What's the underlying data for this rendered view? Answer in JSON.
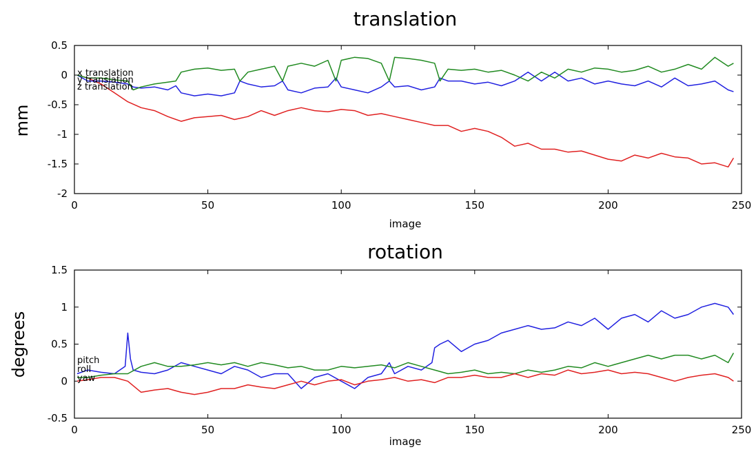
{
  "chart_data": [
    {
      "type": "line",
      "title": "translation",
      "xlabel": "image",
      "ylabel": "mm",
      "xlim": [
        0,
        250
      ],
      "ylim": [
        -2,
        0.5
      ],
      "xticks": [
        "0",
        "50",
        "100",
        "150",
        "200",
        "250"
      ],
      "yticks": [
        "-2",
        "-1.5",
        "-1",
        "-0.5",
        "0",
        "0.5"
      ],
      "grid": false,
      "legend_entries": [
        "x translation",
        "y translation",
        "z translation"
      ],
      "series": [
        {
          "name": "x translation",
          "color": "#e02020",
          "x": [
            1,
            5,
            10,
            15,
            20,
            25,
            30,
            35,
            40,
            45,
            50,
            55,
            60,
            65,
            70,
            75,
            80,
            85,
            90,
            95,
            100,
            105,
            110,
            115,
            120,
            125,
            130,
            135,
            140,
            145,
            150,
            155,
            160,
            165,
            170,
            175,
            180,
            185,
            190,
            195,
            200,
            205,
            210,
            215,
            220,
            225,
            230,
            235,
            240,
            245,
            247
          ],
          "values": [
            0,
            -0.05,
            -0.15,
            -0.3,
            -0.45,
            -0.55,
            -0.6,
            -0.7,
            -0.78,
            -0.72,
            -0.7,
            -0.68,
            -0.75,
            -0.7,
            -0.6,
            -0.68,
            -0.6,
            -0.55,
            -0.6,
            -0.62,
            -0.58,
            -0.6,
            -0.68,
            -0.65,
            -0.7,
            -0.75,
            -0.8,
            -0.85,
            -0.85,
            -0.95,
            -0.9,
            -0.95,
            -1.05,
            -1.2,
            -1.15,
            -1.25,
            -1.25,
            -1.3,
            -1.28,
            -1.35,
            -1.42,
            -1.45,
            -1.35,
            -1.4,
            -1.32,
            -1.38,
            -1.4,
            -1.5,
            -1.48,
            -1.55,
            -1.4
          ]
        },
        {
          "name": "y translation",
          "color": "#2020e0",
          "x": [
            1,
            5,
            10,
            15,
            20,
            22,
            25,
            30,
            35,
            38,
            40,
            45,
            50,
            55,
            60,
            62,
            65,
            70,
            75,
            78,
            80,
            85,
            90,
            95,
            98,
            100,
            105,
            110,
            115,
            118,
            120,
            125,
            130,
            135,
            137,
            140,
            145,
            150,
            155,
            160,
            165,
            170,
            175,
            180,
            185,
            190,
            195,
            200,
            205,
            210,
            215,
            220,
            225,
            230,
            235,
            240,
            245,
            247
          ],
          "values": [
            0,
            -0.1,
            -0.1,
            -0.12,
            -0.15,
            -0.2,
            -0.22,
            -0.2,
            -0.25,
            -0.18,
            -0.3,
            -0.35,
            -0.32,
            -0.35,
            -0.3,
            -0.1,
            -0.15,
            -0.2,
            -0.18,
            -0.1,
            -0.25,
            -0.3,
            -0.22,
            -0.2,
            -0.05,
            -0.2,
            -0.25,
            -0.3,
            -0.2,
            -0.1,
            -0.2,
            -0.18,
            -0.25,
            -0.2,
            -0.05,
            -0.1,
            -0.1,
            -0.15,
            -0.12,
            -0.18,
            -0.1,
            0.05,
            -0.1,
            0.05,
            -0.1,
            -0.05,
            -0.15,
            -0.1,
            -0.15,
            -0.18,
            -0.1,
            -0.2,
            -0.05,
            -0.18,
            -0.15,
            -0.1,
            -0.25,
            -0.28
          ]
        },
        {
          "name": "z translation",
          "color": "#208a20",
          "x": [
            1,
            5,
            10,
            15,
            20,
            22,
            25,
            30,
            35,
            38,
            40,
            45,
            50,
            55,
            60,
            62,
            65,
            70,
            75,
            78,
            80,
            85,
            90,
            95,
            98,
            100,
            105,
            110,
            115,
            118,
            120,
            125,
            130,
            135,
            137,
            140,
            145,
            150,
            155,
            160,
            165,
            170,
            175,
            180,
            185,
            190,
            195,
            200,
            205,
            210,
            215,
            220,
            225,
            230,
            235,
            240,
            245,
            247
          ],
          "values": [
            0,
            -0.05,
            -0.05,
            -0.08,
            -0.1,
            -0.25,
            -0.2,
            -0.15,
            -0.12,
            -0.1,
            0.05,
            0.1,
            0.12,
            0.08,
            0.1,
            -0.1,
            0.05,
            0.1,
            0.15,
            -0.1,
            0.15,
            0.2,
            0.15,
            0.25,
            -0.1,
            0.25,
            0.3,
            0.28,
            0.2,
            -0.1,
            0.3,
            0.28,
            0.25,
            0.2,
            -0.1,
            0.1,
            0.08,
            0.1,
            0.05,
            0.08,
            0.0,
            -0.1,
            0.05,
            -0.05,
            0.1,
            0.05,
            0.12,
            0.1,
            0.05,
            0.08,
            0.15,
            0.05,
            0.1,
            0.18,
            0.1,
            0.3,
            0.15,
            0.2
          ]
        }
      ]
    },
    {
      "type": "line",
      "title": "rotation",
      "xlabel": "image",
      "ylabel": "degrees",
      "xlim": [
        0,
        250
      ],
      "ylim": [
        -0.5,
        1.5
      ],
      "xticks": [
        "0",
        "50",
        "100",
        "150",
        "200",
        "250"
      ],
      "yticks": [
        "-0.5",
        "0",
        "0.5",
        "1",
        "1.5"
      ],
      "grid": false,
      "legend_entries": [
        "pitch",
        "roll",
        "yaw"
      ],
      "series": [
        {
          "name": "pitch",
          "color": "#2020e0",
          "x": [
            1,
            5,
            10,
            15,
            19,
            20,
            21,
            22,
            25,
            30,
            35,
            40,
            45,
            50,
            55,
            60,
            65,
            70,
            75,
            80,
            85,
            90,
            95,
            100,
            105,
            110,
            115,
            118,
            120,
            125,
            130,
            134,
            135,
            137,
            140,
            145,
            150,
            155,
            160,
            165,
            170,
            175,
            180,
            185,
            190,
            195,
            200,
            205,
            210,
            215,
            220,
            225,
            230,
            235,
            240,
            245,
            247
          ],
          "values": [
            0.1,
            0.15,
            0.12,
            0.1,
            0.2,
            0.65,
            0.3,
            0.15,
            0.12,
            0.1,
            0.15,
            0.25,
            0.2,
            0.15,
            0.1,
            0.2,
            0.15,
            0.05,
            0.1,
            0.1,
            -0.1,
            0.05,
            0.1,
            0.0,
            -0.1,
            0.05,
            0.1,
            0.25,
            0.1,
            0.2,
            0.15,
            0.25,
            0.45,
            0.5,
            0.55,
            0.4,
            0.5,
            0.55,
            0.65,
            0.7,
            0.75,
            0.7,
            0.72,
            0.8,
            0.75,
            0.85,
            0.7,
            0.85,
            0.9,
            0.8,
            0.95,
            0.85,
            0.9,
            1.0,
            1.05,
            1.0,
            0.9
          ]
        },
        {
          "name": "roll",
          "color": "#208a20",
          "x": [
            1,
            5,
            10,
            15,
            20,
            25,
            30,
            35,
            40,
            45,
            50,
            55,
            60,
            65,
            70,
            75,
            80,
            85,
            90,
            95,
            100,
            105,
            110,
            115,
            120,
            125,
            130,
            135,
            140,
            145,
            150,
            155,
            160,
            165,
            170,
            175,
            180,
            185,
            190,
            195,
            200,
            205,
            210,
            215,
            220,
            225,
            230,
            235,
            240,
            245,
            247
          ],
          "values": [
            0.05,
            0.05,
            0.08,
            0.1,
            0.1,
            0.2,
            0.25,
            0.2,
            0.2,
            0.22,
            0.25,
            0.22,
            0.25,
            0.2,
            0.25,
            0.22,
            0.18,
            0.2,
            0.15,
            0.15,
            0.2,
            0.18,
            0.2,
            0.22,
            0.18,
            0.25,
            0.2,
            0.15,
            0.1,
            0.12,
            0.15,
            0.1,
            0.12,
            0.1,
            0.15,
            0.12,
            0.15,
            0.2,
            0.18,
            0.25,
            0.2,
            0.25,
            0.3,
            0.35,
            0.3,
            0.35,
            0.35,
            0.3,
            0.35,
            0.25,
            0.38
          ]
        },
        {
          "name": "yaw",
          "color": "#e02020",
          "x": [
            1,
            5,
            10,
            15,
            20,
            25,
            30,
            35,
            40,
            45,
            50,
            55,
            60,
            65,
            70,
            75,
            80,
            85,
            90,
            95,
            100,
            105,
            110,
            115,
            120,
            125,
            130,
            135,
            140,
            145,
            150,
            155,
            160,
            165,
            170,
            175,
            180,
            185,
            190,
            195,
            200,
            205,
            210,
            215,
            220,
            225,
            230,
            235,
            240,
            245,
            247
          ],
          "values": [
            0.0,
            0.02,
            0.05,
            0.05,
            0.0,
            -0.15,
            -0.12,
            -0.1,
            -0.15,
            -0.18,
            -0.15,
            -0.1,
            -0.1,
            -0.05,
            -0.08,
            -0.1,
            -0.05,
            0.0,
            -0.05,
            0.0,
            0.02,
            -0.05,
            0.0,
            0.02,
            0.05,
            0.0,
            0.02,
            -0.02,
            0.05,
            0.05,
            0.08,
            0.05,
            0.05,
            0.1,
            0.05,
            0.1,
            0.08,
            0.15,
            0.1,
            0.12,
            0.15,
            0.1,
            0.12,
            0.1,
            0.05,
            0.0,
            0.05,
            0.08,
            0.1,
            0.05,
            0.0
          ]
        }
      ]
    }
  ]
}
